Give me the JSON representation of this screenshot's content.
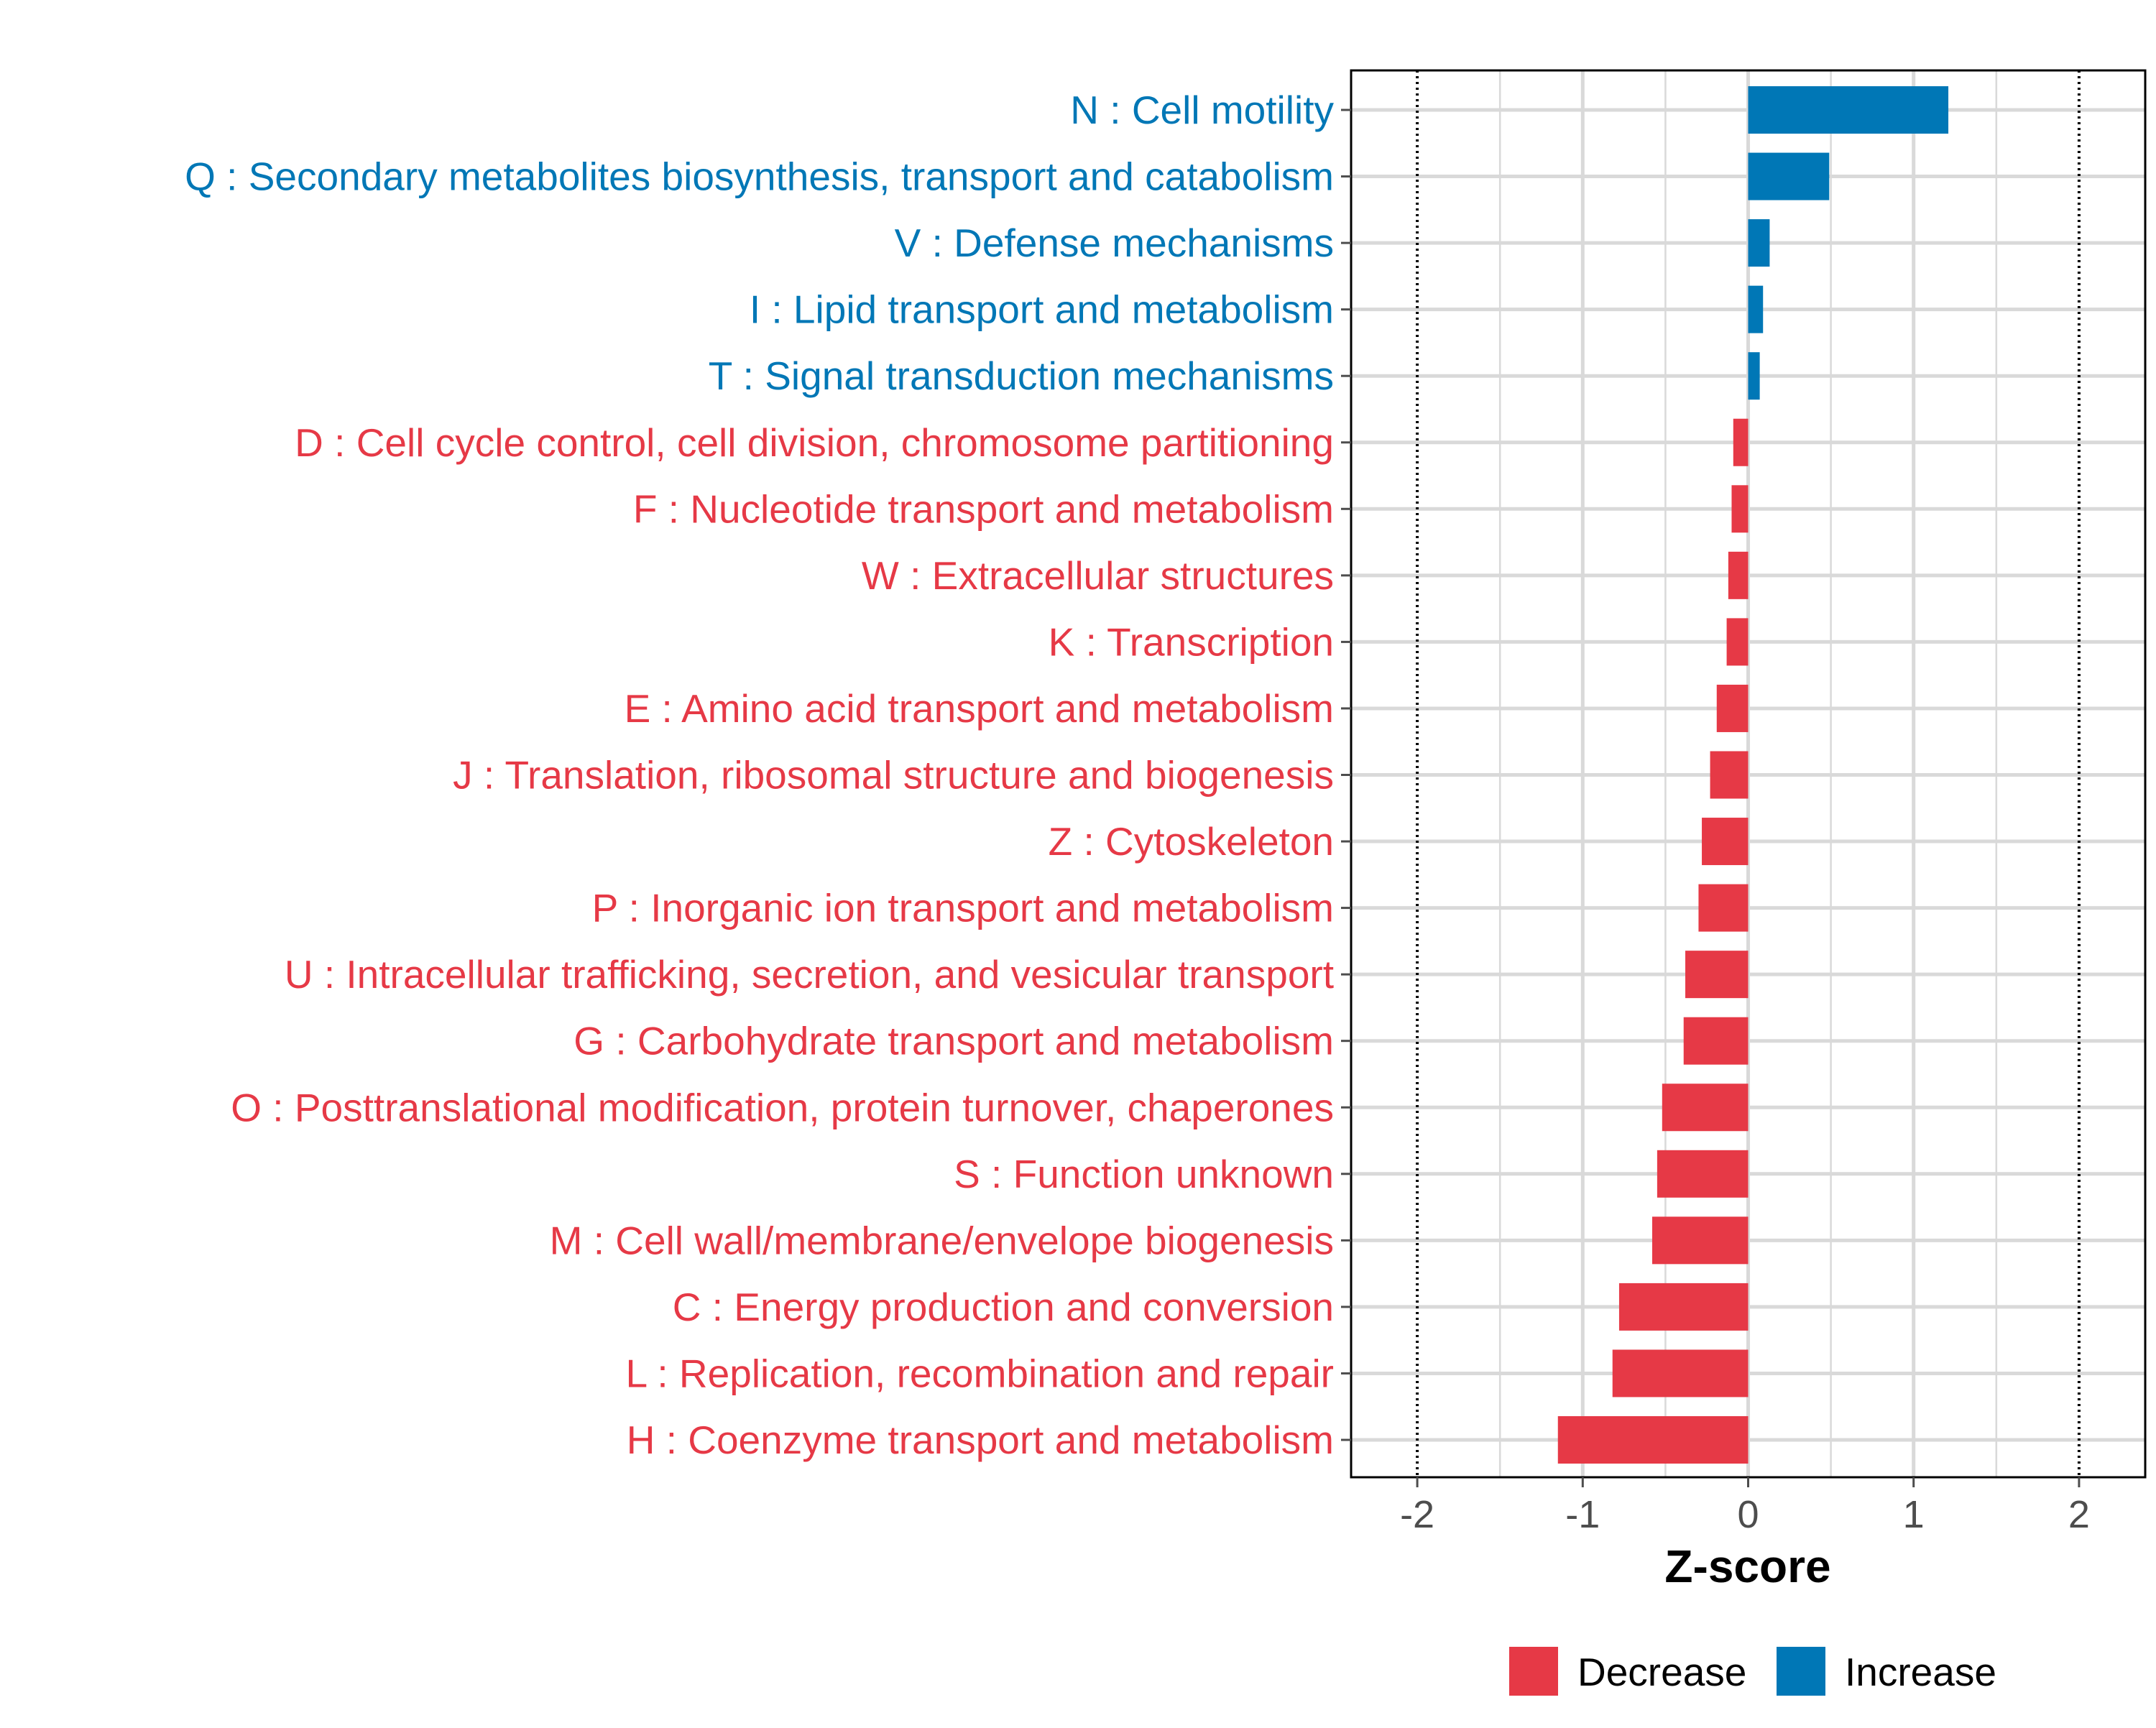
{
  "chart_data": {
    "type": "bar",
    "orientation": "horizontal",
    "title": "",
    "xlabel": "Z-score",
    "ylabel": "",
    "xlim": [
      -2.4,
      2.4
    ],
    "x_ticks": [
      -2,
      -1,
      0,
      1,
      2
    ],
    "x_tick_labels": [
      "-2",
      "-1",
      "0",
      "1",
      "2"
    ],
    "reference_lines": [
      -2,
      2
    ],
    "grid": true,
    "legend_position": "bottom",
    "legend": [
      {
        "label": "Decrease",
        "color": "#E63946"
      },
      {
        "label": "Increase",
        "color": "#0077B6"
      }
    ],
    "categories": [
      "N : Cell motility",
      "Q : Secondary metabolites biosynthesis, transport and catabolism",
      "V : Defense mechanisms",
      "I : Lipid transport and metabolism",
      "T : Signal transduction mechanisms",
      "D : Cell cycle control, cell division, chromosome partitioning",
      "F : Nucleotide transport and metabolism",
      "W : Extracellular structures",
      "K : Transcription",
      "E : Amino acid transport and metabolism",
      "J : Translation, ribosomal structure and biogenesis",
      "Z : Cytoskeleton",
      "P : Inorganic ion transport and metabolism",
      "U : Intracellular trafficking, secretion, and vesicular transport",
      "G : Carbohydrate transport and metabolism",
      "O : Posttranslational modification, protein turnover, chaperones",
      "S : Function unknown",
      "M : Cell wall/membrane/envelope biogenesis",
      "C : Energy production and conversion",
      "L : Replication, recombination and repair",
      "H : Coenzyme transport and metabolism"
    ],
    "values": [
      1.21,
      0.49,
      0.13,
      0.09,
      0.07,
      -0.09,
      -0.1,
      -0.12,
      -0.13,
      -0.19,
      -0.23,
      -0.28,
      -0.3,
      -0.38,
      -0.39,
      -0.52,
      -0.55,
      -0.58,
      -0.78,
      -0.82,
      -1.15
    ],
    "groups": [
      "Increase",
      "Increase",
      "Increase",
      "Increase",
      "Increase",
      "Decrease",
      "Decrease",
      "Decrease",
      "Decrease",
      "Decrease",
      "Decrease",
      "Decrease",
      "Decrease",
      "Decrease",
      "Decrease",
      "Decrease",
      "Decrease",
      "Decrease",
      "Decrease",
      "Decrease",
      "Decrease"
    ]
  },
  "colors": {
    "decrease": "#E63946",
    "increase": "#0077B6",
    "grid": "#D9D9D9",
    "axis": "#000000",
    "tick_text": "#4D4D4D"
  }
}
